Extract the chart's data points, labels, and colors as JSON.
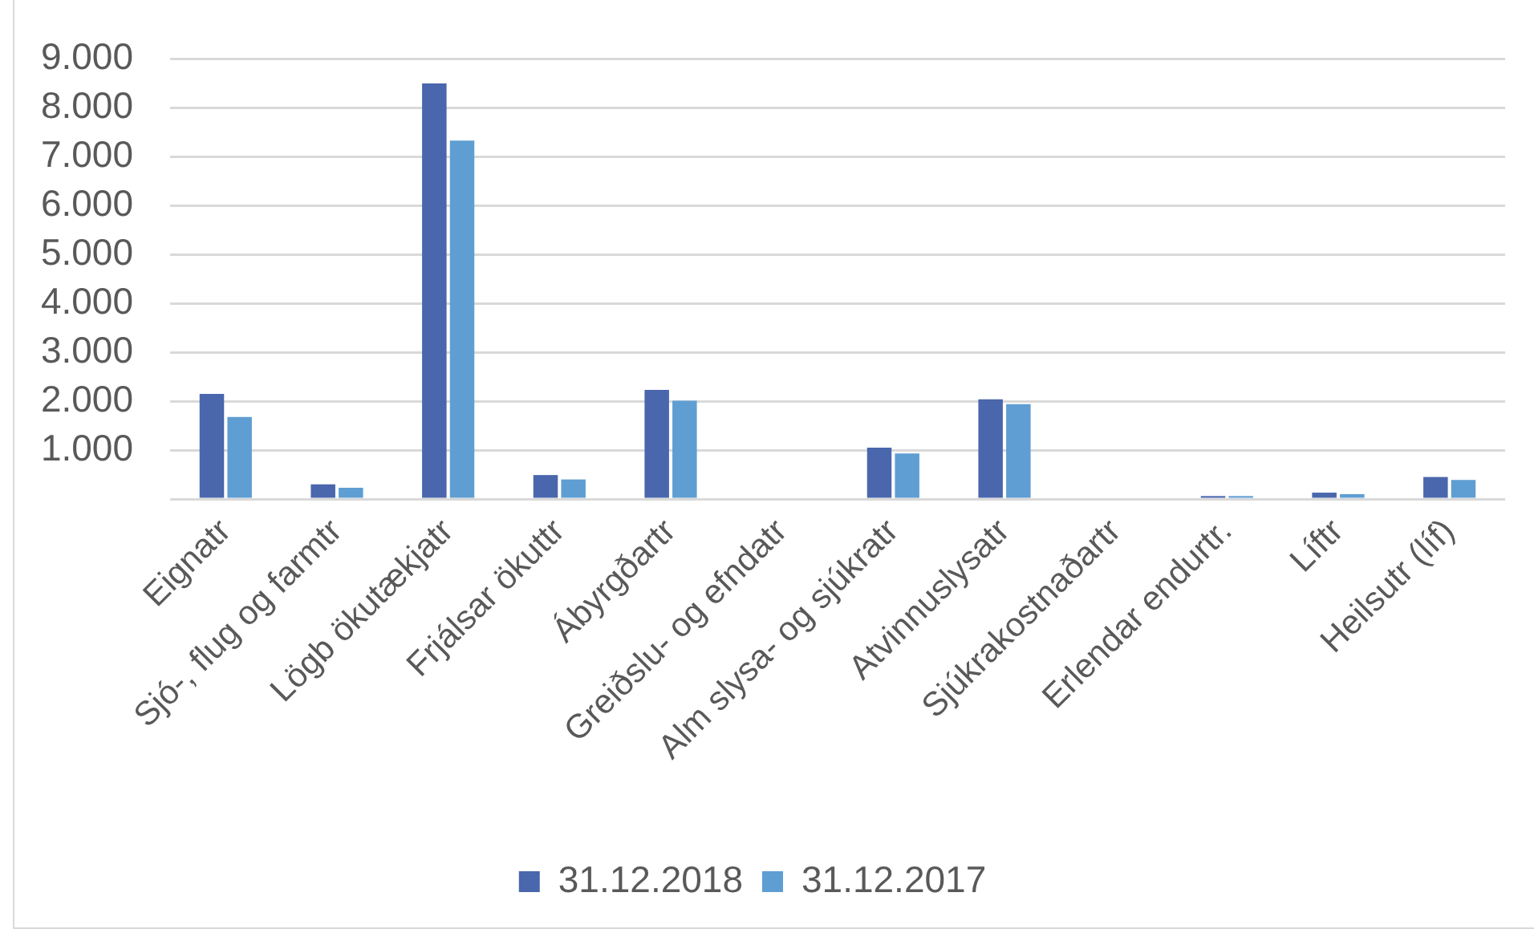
{
  "chart_data": {
    "type": "bar",
    "categories": [
      "Eignatr",
      "Sjó-, flug og farmtr",
      "Lögb ökutækjatr",
      "Frjálsar ökuttr",
      "Ábyrgðartr",
      "Greiðslu- og efndatr",
      "Alm slysa- og sjúkratr",
      "Atvinnuslysatr",
      "Sjúkrakostnaðartr",
      "Erlendar endurtr.",
      "Líftr",
      "Heilsutr (líf)"
    ],
    "series": [
      {
        "name": "31.12.2018",
        "color": "#4a66ac",
        "values": [
          2150,
          300,
          8500,
          490,
          2230,
          0,
          1050,
          2040,
          0,
          60,
          130,
          450
        ]
      },
      {
        "name": "31.12.2017",
        "color": "#5f9ed2",
        "values": [
          1680,
          230,
          7330,
          400,
          2010,
          0,
          930,
          1940,
          0,
          60,
          100,
          390
        ]
      }
    ],
    "ylim": [
      0,
      9000
    ],
    "yticks": [
      {
        "value": 0,
        "label": null
      },
      {
        "value": 1000,
        "label": "1.000"
      },
      {
        "value": 2000,
        "label": "2.000"
      },
      {
        "value": 3000,
        "label": "3.000"
      },
      {
        "value": 4000,
        "label": "4.000"
      },
      {
        "value": 5000,
        "label": "5.000"
      },
      {
        "value": 6000,
        "label": "6.000"
      },
      {
        "value": 7000,
        "label": "7.000"
      },
      {
        "value": 8000,
        "label": "8.000"
      },
      {
        "value": 9000,
        "label": "9.000"
      }
    ],
    "grid": "y",
    "legend": "bottom"
  }
}
